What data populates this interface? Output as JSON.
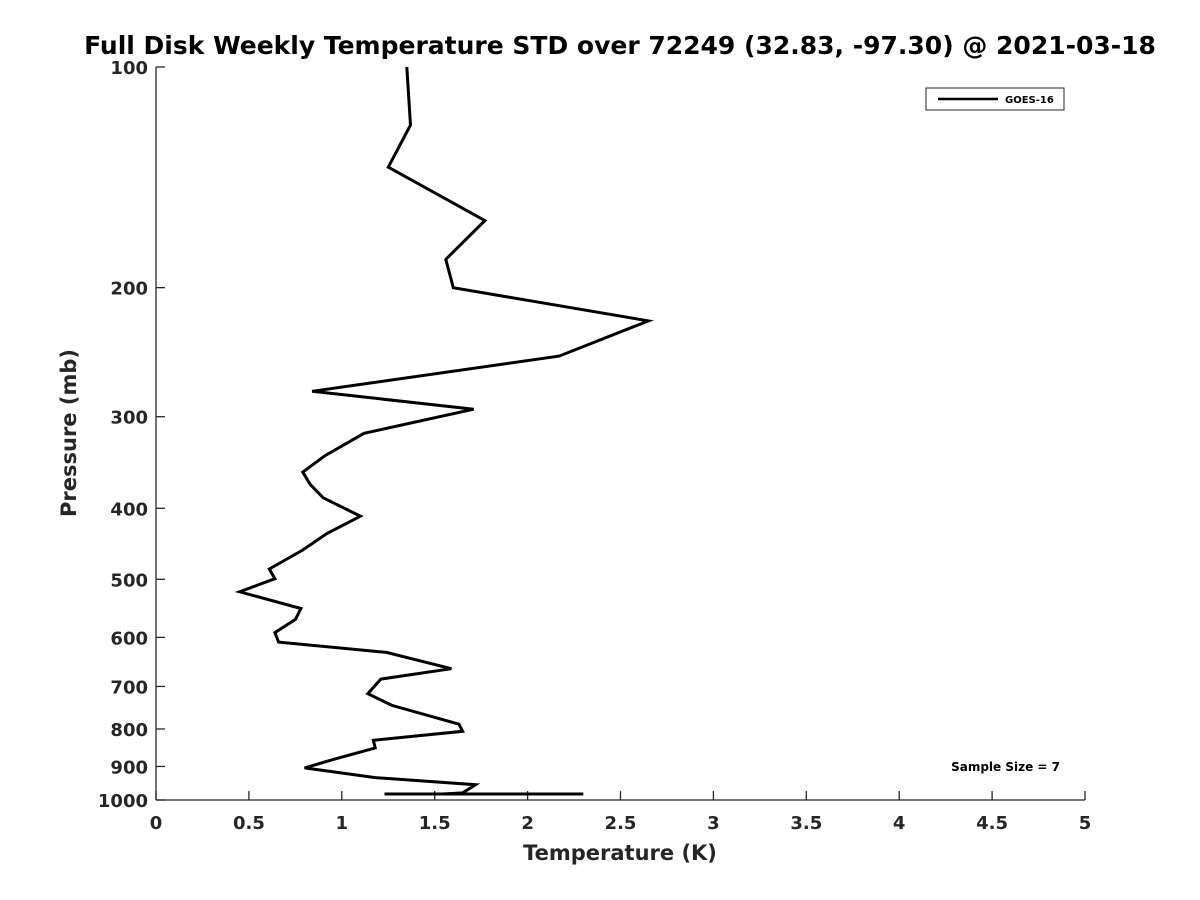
{
  "chart_data": {
    "type": "line",
    "title": "Full Disk Weekly Temperature STD over 72249 (32.83, -97.30) @ 2021-03-18",
    "xlabel": "Temperature (K)",
    "ylabel": "Pressure (mb)",
    "xlim": [
      0,
      5
    ],
    "ylim": [
      100,
      1000
    ],
    "y_scale": "log",
    "y_reversed": true,
    "x_ticks": [
      "0",
      "0.5",
      "1",
      "1.5",
      "2",
      "2.5",
      "3",
      "3.5",
      "4",
      "4.5",
      "5"
    ],
    "y_ticks": [
      "100",
      "200",
      "300",
      "400",
      "500",
      "600",
      "700",
      "800",
      "900",
      "1000"
    ],
    "grid": false,
    "legend_position": "top-right",
    "annotation": "Sample Size = 7",
    "series": [
      {
        "name": "GOES-16",
        "color": "#000000",
        "x": [
          1.35,
          1.37,
          1.25,
          1.77,
          1.56,
          1.6,
          2.65,
          2.17,
          0.84,
          1.71,
          1.12,
          0.91,
          0.79,
          0.83,
          0.9,
          1.1,
          0.92,
          0.79,
          0.61,
          0.64,
          0.45,
          0.78,
          0.75,
          0.64,
          0.66,
          1.24,
          1.59,
          1.21,
          1.14,
          1.27,
          1.63,
          1.65,
          1.17,
          1.18,
          0.95,
          0.8,
          1.18,
          1.72,
          1.65,
          1.54,
          1.31,
          1.29,
          1.38,
          1.23,
          2.3
        ],
        "y": [
          100,
          120,
          137,
          162,
          183,
          200,
          222,
          248,
          277,
          293,
          316,
          339,
          357,
          371,
          387,
          410,
          433,
          456,
          484,
          499,
          520,
          548,
          567,
          591,
          609,
          629,
          662,
          684,
          716,
          743,
          788,
          806,
          829,
          849,
          881,
          904,
          932,
          953,
          978,
          1006,
          1036,
          1060,
          1074,
          1090,
          1104
        ]
      }
    ]
  }
}
